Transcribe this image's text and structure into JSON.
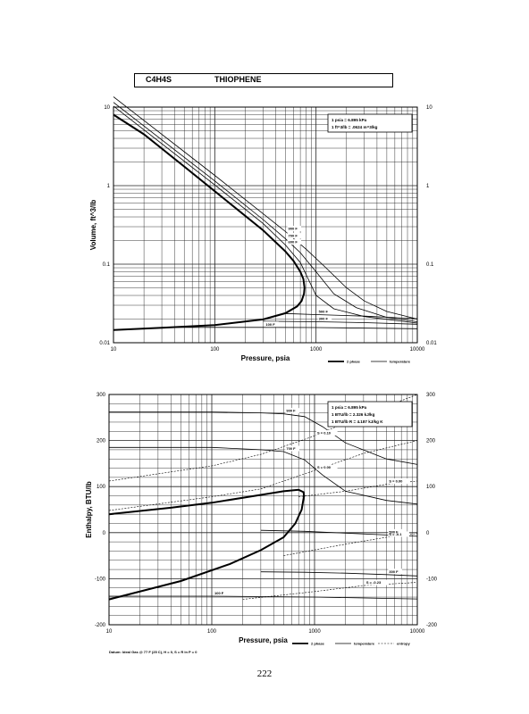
{
  "header": {
    "formula": "C4H4S",
    "name": "THIOPHENE"
  },
  "page_number": "222",
  "chart_data": [
    {
      "type": "line",
      "title": "",
      "xlabel": "Pressure,  psia",
      "ylabel": "Volume, ft^3/lb",
      "xscale": "log",
      "yscale": "log",
      "xlim": [
        10,
        10000
      ],
      "ylim": [
        0.01,
        10
      ],
      "x_tick_labels": [
        "10",
        "100",
        "1000",
        "10000"
      ],
      "y_tick_labels": [
        "10",
        "1",
        "0.1",
        "0.01"
      ],
      "y2_tick_labels": [
        "10",
        "1",
        "0.1",
        "0.01"
      ],
      "units_note": [
        "1 psia = 6.895 kPa",
        "1 ft^3/lb = .0624 m^3/kg"
      ],
      "legend": [
        {
          "label": "2 phase",
          "style": "thick"
        },
        {
          "label": "temperature",
          "style": "thin"
        }
      ],
      "legend_placement": "bottom-right",
      "series": [
        {
          "name": "2 phase",
          "style": "thick",
          "points": [
            [
              10,
              0.0145
            ],
            [
              30,
              0.0155
            ],
            [
              100,
              0.0168
            ],
            [
              300,
              0.0198
            ],
            [
              500,
              0.0238
            ],
            [
              650,
              0.029
            ],
            [
              720,
              0.034
            ],
            [
              760,
              0.042
            ],
            [
              770,
              0.05
            ],
            [
              750,
              0.065
            ],
            [
              700,
              0.08
            ],
            [
              600,
              0.11
            ],
            [
              500,
              0.145
            ],
            [
              300,
              0.27
            ],
            [
              100,
              0.85
            ],
            [
              50,
              1.75
            ],
            [
              20,
              4.5
            ],
            [
              10,
              8.0
            ]
          ]
        },
        {
          "label": "900 F",
          "style": "thin",
          "points": [
            [
              10,
              13.5
            ],
            [
              100,
              1.35
            ],
            [
              300,
              0.44
            ],
            [
              500,
              0.26
            ],
            [
              800,
              0.155
            ],
            [
              1200,
              0.095
            ],
            [
              2000,
              0.05
            ],
            [
              3000,
              0.034
            ],
            [
              5000,
              0.025
            ],
            [
              10000,
              0.02
            ]
          ]
        },
        {
          "label": "700 F",
          "style": "thin",
          "points": [
            [
              10,
              11.5
            ],
            [
              100,
              1.15
            ],
            [
              300,
              0.37
            ],
            [
              500,
              0.21
            ],
            [
              700,
              0.14
            ],
            [
              1000,
              0.08
            ],
            [
              1500,
              0.042
            ],
            [
              2500,
              0.028
            ],
            [
              5000,
              0.021
            ],
            [
              10000,
              0.0185
            ]
          ]
        },
        {
          "label": "600 F",
          "style": "thin",
          "points": [
            [
              10,
              10.3
            ],
            [
              100,
              1.02
            ],
            [
              300,
              0.33
            ],
            [
              500,
              0.175
            ],
            [
              700,
              0.105
            ],
            [
              1000,
              0.04
            ],
            [
              1500,
              0.027
            ],
            [
              3000,
              0.0215
            ],
            [
              10000,
              0.0178
            ]
          ]
        },
        {
          "label": "500 F",
          "style": "thin",
          "points": [
            [
              500,
              0.0235
            ],
            [
              1000,
              0.0228
            ],
            [
              3000,
              0.0218
            ],
            [
              10000,
              0.0202
            ]
          ]
        },
        {
          "label": "300 F",
          "style": "thin",
          "points": [
            [
              300,
              0.0188
            ],
            [
              1000,
              0.0185
            ],
            [
              3000,
              0.018
            ],
            [
              10000,
              0.0172
            ]
          ]
        },
        {
          "label": "100 F",
          "style": "thin",
          "points": [
            [
              30,
              0.0157
            ],
            [
              300,
              0.0157
            ],
            [
              1000,
              0.0156
            ],
            [
              10000,
              0.0151
            ]
          ]
        }
      ]
    },
    {
      "type": "line",
      "title": "",
      "xlabel": "Pressure,  psia",
      "ylabel": "Enthalpy, BTU/lb",
      "xscale": "log",
      "yscale": "linear",
      "xlim": [
        10,
        10000
      ],
      "ylim": [
        -200,
        300
      ],
      "x_tick_labels": [
        "10",
        "100",
        "1000",
        "10000"
      ],
      "y_tick_labels": [
        "300",
        "200",
        "100",
        "0",
        "-100",
        "-200"
      ],
      "y2_tick_labels": [
        "300",
        "200",
        "100",
        "0",
        "-100",
        "-200"
      ],
      "units_note": [
        "1 psia = 6.895 kPa",
        "1 BTU/lb = 2.326 kJ/kg",
        "1 BTU/lb R = 4.187 kJ/kg K"
      ],
      "legend": [
        {
          "label": "2 phase",
          "style": "thick"
        },
        {
          "label": "temperature",
          "style": "thin"
        },
        {
          "label": "entropy",
          "style": "dashed"
        }
      ],
      "legend_placement": "bottom-right",
      "datum_note": "Datum: Ideal Gas @ 77 F (25 C), H = 0, S = R ln P = 0",
      "series": [
        {
          "name": "2 phase",
          "style": "thick",
          "points": [
            [
              10,
              -145
            ],
            [
              50,
              -105
            ],
            [
              150,
              -68
            ],
            [
              300,
              -38
            ],
            [
              500,
              -10
            ],
            [
              650,
              20
            ],
            [
              750,
              50
            ],
            [
              790,
              80
            ],
            [
              780,
              88
            ],
            [
              700,
              93
            ],
            [
              500,
              90
            ],
            [
              300,
              82
            ],
            [
              100,
              65
            ],
            [
              40,
              54
            ],
            [
              10,
              40
            ]
          ]
        },
        {
          "label": "900 F",
          "style": "thin",
          "points": [
            [
              10,
              262
            ],
            [
              100,
              262
            ],
            [
              300,
              260
            ],
            [
              500,
              258
            ],
            [
              800,
              252
            ],
            [
              1200,
              230
            ],
            [
              2000,
              195
            ],
            [
              5000,
              160
            ],
            [
              10000,
              148
            ]
          ]
        },
        {
          "label": "700 F",
          "style": "thin",
          "points": [
            [
              10,
              185
            ],
            [
              100,
              185
            ],
            [
              300,
              180
            ],
            [
              500,
              176
            ],
            [
              800,
              158
            ],
            [
              1200,
              125
            ],
            [
              2000,
              90
            ],
            [
              5000,
              70
            ],
            [
              10000,
              62
            ]
          ]
        },
        {
          "label": "500 F",
          "style": "thin",
          "points": [
            [
              300,
              5
            ],
            [
              800,
              3
            ],
            [
              2000,
              -1
            ],
            [
              5000,
              -5
            ],
            [
              10000,
              -8
            ]
          ]
        },
        {
          "label": "300 F",
          "style": "thin",
          "points": [
            [
              300,
              -85
            ],
            [
              800,
              -86
            ],
            [
              2000,
              -88
            ],
            [
              5000,
              -91
            ],
            [
              10000,
              -94
            ]
          ]
        },
        {
          "label": "100 F",
          "style": "thin",
          "points": [
            [
              10,
              -138
            ],
            [
              100,
              -138
            ],
            [
              1000,
              -140
            ],
            [
              10000,
              -144
            ]
          ]
        },
        {
          "label": "S = 0.10",
          "style": "dashed",
          "points": [
            [
              10,
              112
            ],
            [
              100,
              145
            ],
            [
              300,
              170
            ],
            [
              1000,
              210
            ],
            [
              3000,
              255
            ],
            [
              10000,
              300
            ]
          ]
        },
        {
          "label": "S = 0.00",
          "style": "dashed",
          "points": [
            [
              10,
              48
            ],
            [
              100,
              78
            ],
            [
              300,
              95
            ],
            [
              1000,
              135
            ],
            [
              3000,
              172
            ],
            [
              10000,
              200
            ]
          ]
        },
        {
          "label": "S = 0.00",
          "style": "dashed",
          "points": [
            [
              700,
              78
            ],
            [
              2000,
              90
            ],
            [
              5000,
              105
            ],
            [
              10000,
              112
            ]
          ]
        },
        {
          "label": "S = -0.1",
          "style": "dashed",
          "points": [
            [
              500,
              -50
            ],
            [
              2000,
              -25
            ],
            [
              5000,
              -10
            ],
            [
              10000,
              -2
            ]
          ]
        },
        {
          "label": "S = -0.23",
          "style": "dashed",
          "points": [
            [
              200,
              -145
            ],
            [
              1000,
              -128
            ],
            [
              3000,
              -115
            ],
            [
              10000,
              -108
            ]
          ]
        }
      ]
    }
  ]
}
